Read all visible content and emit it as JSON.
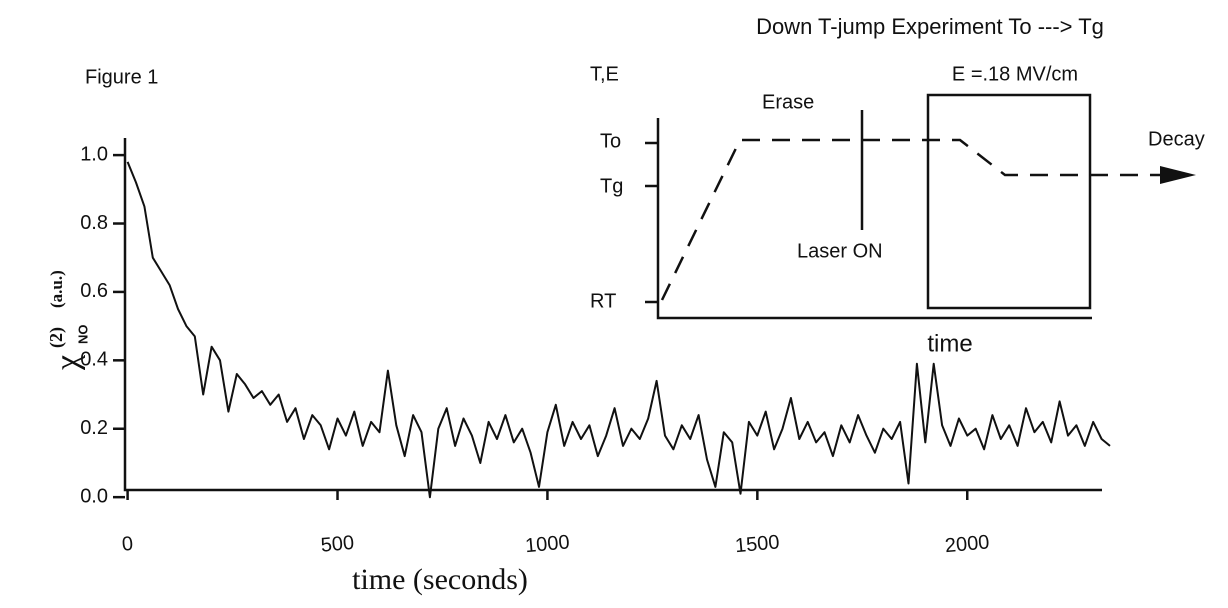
{
  "chart_data": {
    "type": "line",
    "figure_label": "Figure 1",
    "x_label": "time (seconds)",
    "y_label": {
      "symbol": "χ",
      "superscript": "(2)",
      "subscript": "NO",
      "unit": "(a.u.)"
    },
    "color": "#111111",
    "xlim": [
      -30,
      2340
    ],
    "xticks": [
      0,
      500,
      1000,
      1500,
      2000
    ],
    "ylim": [
      -0.02,
      1.05
    ],
    "yticks": [
      {
        "value": 0,
        "label": "0.0"
      },
      0.2,
      0.4,
      0.6,
      0.8,
      {
        "value": 1,
        "label": "1.0"
      }
    ],
    "x": [
      0,
      20,
      40,
      60,
      80,
      100,
      120,
      140,
      160,
      180,
      200,
      220,
      240,
      260,
      280,
      300,
      320,
      340,
      360,
      380,
      400,
      420,
      440,
      460,
      480,
      500,
      520,
      540,
      560,
      580,
      600,
      620,
      640,
      660,
      680,
      700,
      720,
      740,
      760,
      780,
      800,
      820,
      840,
      860,
      880,
      900,
      920,
      940,
      960,
      980,
      1000,
      1020,
      1040,
      1060,
      1080,
      1100,
      1120,
      1140,
      1160,
      1180,
      1200,
      1220,
      1240,
      1260,
      1280,
      1300,
      1320,
      1340,
      1360,
      1380,
      1400,
      1420,
      1440,
      1460,
      1480,
      1500,
      1520,
      1540,
      1560,
      1580,
      1600,
      1620,
      1640,
      1660,
      1680,
      1700,
      1720,
      1740,
      1760,
      1780,
      1800,
      1820,
      1840,
      1860,
      1880,
      1900,
      1920,
      1940,
      1960,
      1980,
      2000,
      2020,
      2040,
      2060,
      2080,
      2100,
      2120,
      2140,
      2160,
      2180,
      2200,
      2220,
      2240,
      2260,
      2280,
      2300,
      2320,
      2340
    ],
    "values": [
      0.98,
      0.92,
      0.85,
      0.7,
      0.66,
      0.62,
      0.55,
      0.5,
      0.47,
      0.3,
      0.44,
      0.4,
      0.25,
      0.36,
      0.33,
      0.29,
      0.31,
      0.27,
      0.3,
      0.22,
      0.26,
      0.17,
      0.24,
      0.21,
      0.14,
      0.23,
      0.18,
      0.25,
      0.15,
      0.22,
      0.19,
      0.37,
      0.21,
      0.12,
      0.24,
      0.19,
      0.0,
      0.2,
      0.26,
      0.15,
      0.23,
      0.18,
      0.1,
      0.22,
      0.17,
      0.24,
      0.16,
      0.2,
      0.13,
      0.03,
      0.19,
      0.27,
      0.15,
      0.22,
      0.17,
      0.21,
      0.12,
      0.18,
      0.26,
      0.15,
      0.2,
      0.17,
      0.23,
      0.34,
      0.18,
      0.14,
      0.21,
      0.17,
      0.24,
      0.11,
      0.03,
      0.19,
      0.16,
      0.01,
      0.22,
      0.18,
      0.25,
      0.14,
      0.2,
      0.29,
      0.17,
      0.22,
      0.16,
      0.19,
      0.12,
      0.21,
      0.16,
      0.24,
      0.18,
      0.13,
      0.2,
      0.17,
      0.22,
      0.04,
      0.39,
      0.16,
      0.39,
      0.21,
      0.15,
      0.23,
      0.18,
      0.2,
      0.14,
      0.24,
      0.17,
      0.21,
      0.15,
      0.26,
      0.19,
      0.22,
      0.16,
      0.28,
      0.18,
      0.21,
      0.15,
      0.22,
      0.17,
      0.15
    ],
    "inset": {
      "title": "Down T-jump Experiment   To ---> Tg",
      "y_axis_label": "T,E",
      "field_label": "E =.18 MV/cm",
      "erase": "Erase",
      "to": "To",
      "tg": "Tg",
      "rt": "RT",
      "laser": "Laser ON",
      "decay": "Decay",
      "x_axis_label": "time"
    }
  }
}
